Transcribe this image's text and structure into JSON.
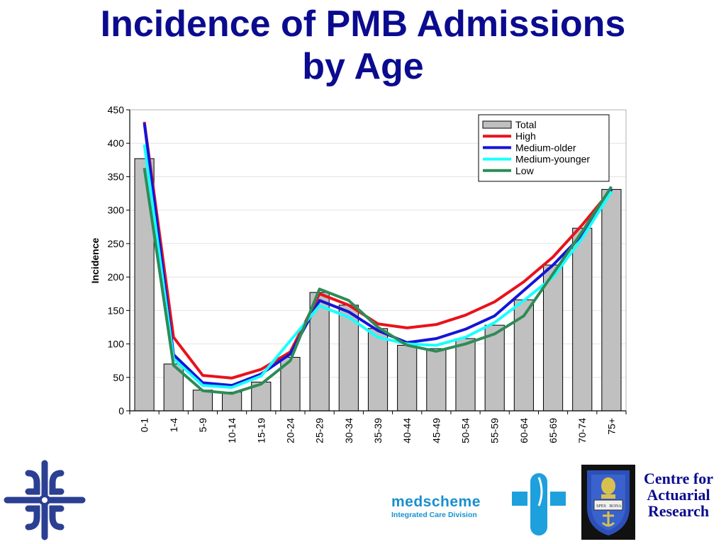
{
  "slide": {
    "title_line1": "Incidence of PMB Admissions",
    "title_line2": "by Age"
  },
  "chart_data": {
    "type": "bar",
    "title": "",
    "xlabel": "",
    "ylabel": "Incidence",
    "ylim": [
      0,
      450
    ],
    "yticks": [
      "0",
      "50",
      "100",
      "150",
      "200",
      "250",
      "300",
      "350",
      "400",
      "450"
    ],
    "grid": true,
    "legend_position": "top-right",
    "categories": [
      "0-1",
      "1-4",
      "5-9",
      "10-14",
      "15-19",
      "20-24",
      "25-29",
      "30-34",
      "35-39",
      "40-44",
      "45-49",
      "50-54",
      "55-59",
      "60-64",
      "65-69",
      "70-74",
      "75+"
    ],
    "bars": {
      "name": "Total",
      "color": "#c0c0c0",
      "values": [
        377,
        70,
        31,
        28,
        43,
        80,
        177,
        158,
        123,
        98,
        93,
        108,
        128,
        166,
        218,
        273,
        331
      ]
    },
    "series": [
      {
        "name": "High",
        "color": "#e8121b",
        "values": [
          432,
          110,
          53,
          49,
          62,
          88,
          175,
          158,
          130,
          124,
          129,
          143,
          163,
          193,
          230,
          278,
          331
        ]
      },
      {
        "name": "Medium-older",
        "color": "#1414d8",
        "values": [
          430,
          84,
          42,
          38,
          55,
          85,
          165,
          148,
          120,
          102,
          108,
          122,
          142,
          180,
          218,
          263,
          331
        ]
      },
      {
        "name": "Medium-younger",
        "color": "#19ffff",
        "values": [
          398,
          78,
          38,
          35,
          52,
          105,
          157,
          140,
          110,
          100,
          98,
          110,
          132,
          165,
          200,
          258,
          328
        ]
      },
      {
        "name": "Low",
        "color": "#2e8b57",
        "values": [
          363,
          68,
          30,
          26,
          40,
          75,
          182,
          165,
          125,
          98,
          89,
          100,
          115,
          142,
          205,
          268,
          335
        ]
      }
    ]
  },
  "logos": {
    "medscheme_name": "medscheme",
    "medscheme_tagline": "Integrated Care Division",
    "car_line1": "Centre for",
    "car_line2": "Actuarial",
    "car_line3": "Research",
    "crest_banner_left": "SPES",
    "crest_banner_right": "BONA"
  }
}
